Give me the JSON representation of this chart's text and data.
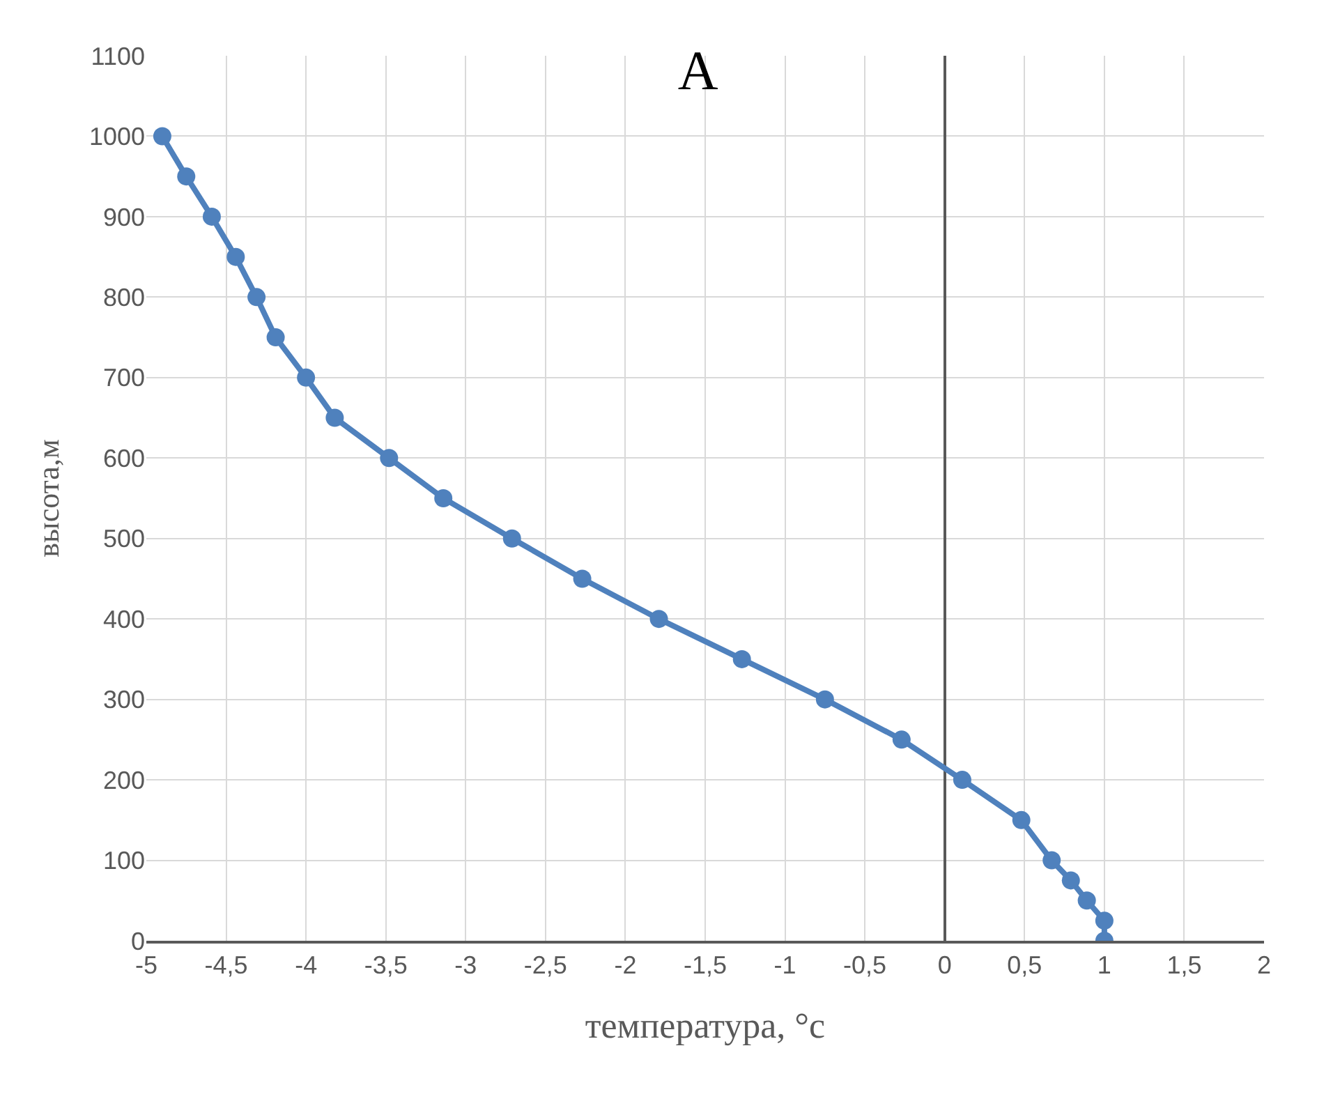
{
  "chart_data": {
    "type": "line",
    "title": "A",
    "xlabel": "температура, °c",
    "ylabel": "высота,м",
    "series": [
      {
        "color": "#4f81bd",
        "x": [
          -4.9,
          -4.75,
          -4.59,
          -4.44,
          -4.31,
          -4.19,
          -4.0,
          -3.82,
          -3.48,
          -3.14,
          -2.71,
          -2.27,
          -1.79,
          -1.27,
          -0.75,
          -0.27,
          0.11,
          0.48,
          0.67,
          0.79,
          0.89,
          1.0,
          1.0
        ],
        "values": [
          1000,
          950,
          900,
          850,
          800,
          750,
          700,
          650,
          600,
          550,
          500,
          450,
          400,
          350,
          300,
          250,
          200,
          150,
          100,
          75,
          50,
          25,
          0
        ]
      }
    ],
    "xlim": [
      -5,
      2
    ],
    "xticks": [
      -5,
      {
        "value": -4.5,
        "label": "-4,5"
      },
      -4,
      {
        "value": -3.5,
        "label": "-3,5"
      },
      -3,
      {
        "value": -2.5,
        "label": "-2,5"
      },
      -2,
      {
        "value": -1.5,
        "label": "-1,5"
      },
      -1,
      {
        "value": -0.5,
        "label": "-0,5"
      },
      0,
      {
        "value": 0.5,
        "label": "0,5"
      },
      1,
      {
        "value": 1.5,
        "label": "1,5"
      },
      2
    ],
    "ylim": [
      0,
      1100
    ],
    "yticks": [
      0,
      100,
      200,
      300,
      400,
      500,
      600,
      700,
      800,
      900,
      1000,
      1100
    ],
    "grid": true,
    "marker": "circle",
    "line_style": "solid"
  }
}
